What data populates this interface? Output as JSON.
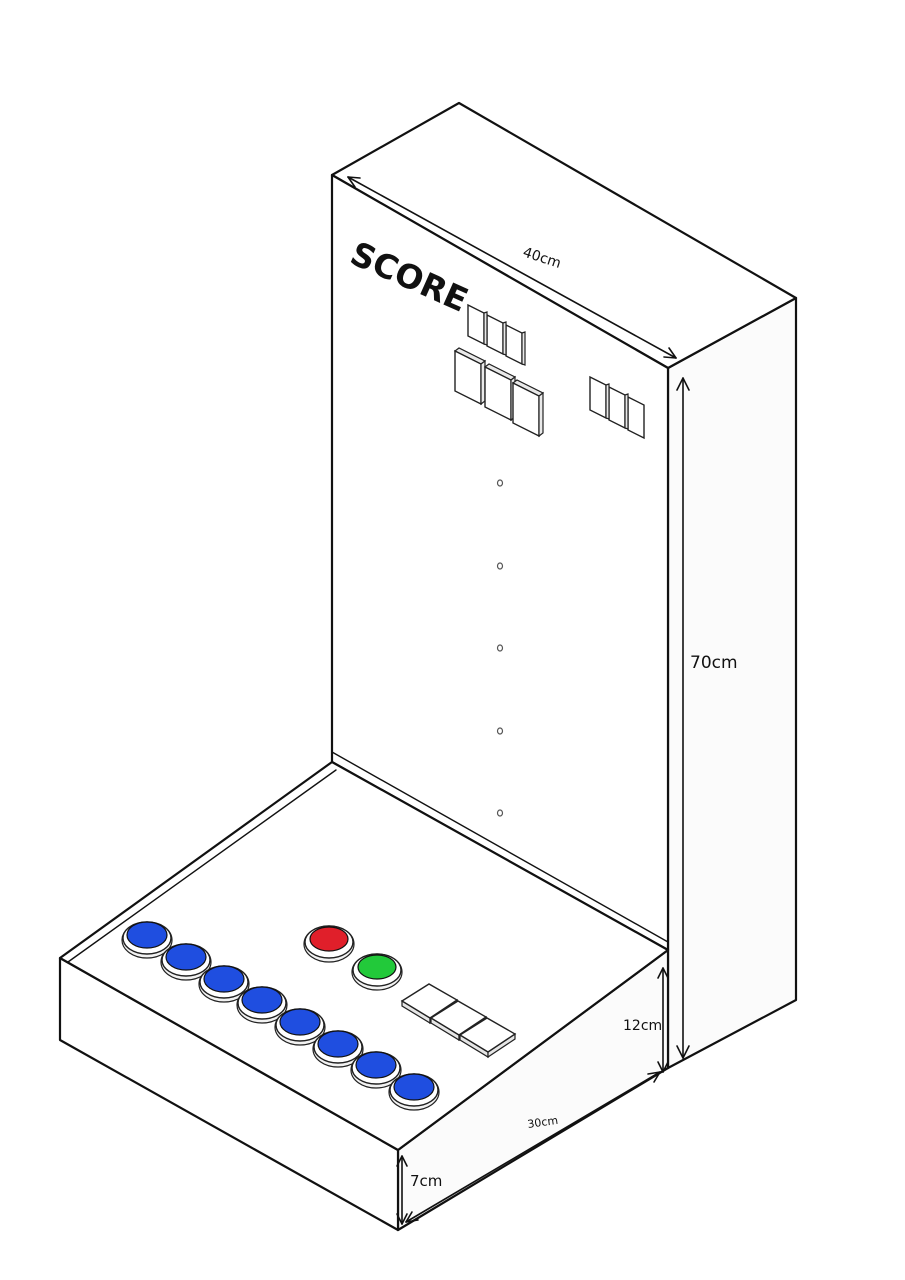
{
  "panel": {
    "label": "SCORE"
  },
  "dimensions": {
    "width": "40cm",
    "height": "70cm",
    "base_depth": "30cm",
    "base_back_height": "12cm",
    "base_front_height": "7cm"
  },
  "buttons": {
    "player_color": "#1f4ee0",
    "start_color": "#e01f2a",
    "go_color": "#22c93a"
  }
}
